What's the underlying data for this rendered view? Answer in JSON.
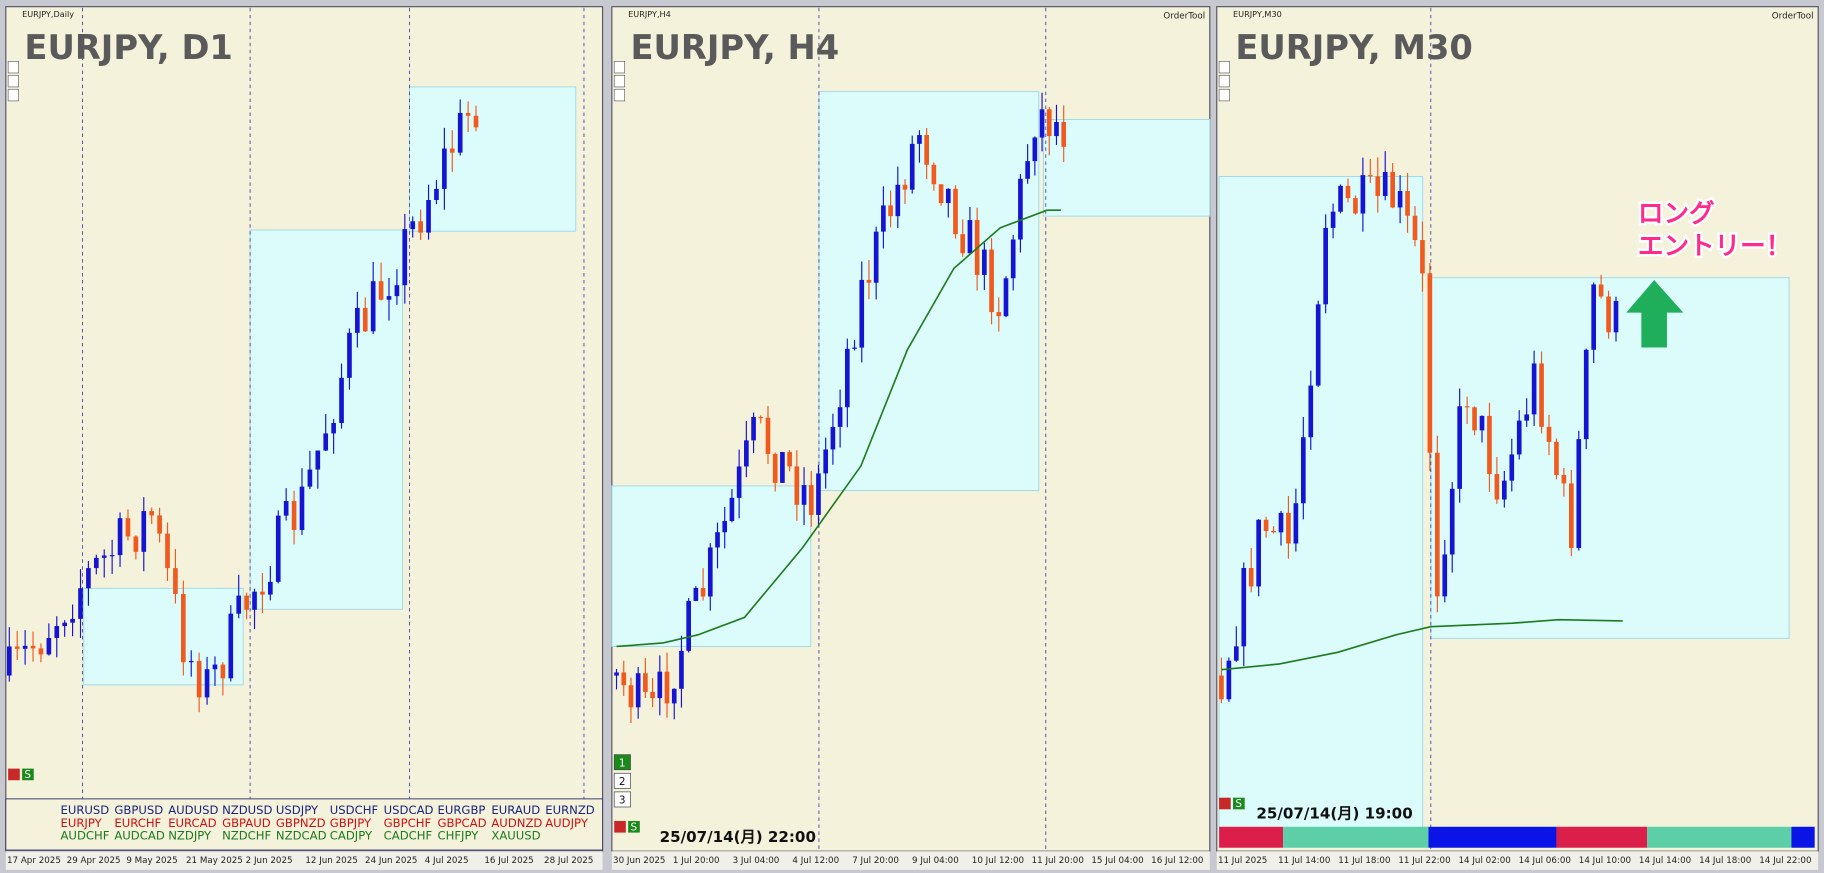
{
  "panels": [
    {
      "label": "EURJPY,Daily",
      "title": "EURJPY, D1",
      "dates": [
        "17 Apr 2025",
        "29 Apr 2025",
        "9 May 2025",
        "21 May 2025",
        "2 Jun 2025",
        "12 Jun 2025",
        "24 Jun 2025",
        "4 Jul 2025",
        "16 Jul 2025",
        "28 Jul 2025"
      ]
    },
    {
      "label": "EURJPY,H4",
      "title": "EURJPY, H4",
      "order_tool": "OrderTool",
      "dates": [
        "30 Jun 2025",
        "1 Jul 20:00",
        "3 Jul 04:00",
        "4 Jul 12:00",
        "7 Jul 20:00",
        "9 Jul 04:00",
        "10 Jul 12:00",
        "11 Jul 20:00",
        "15 Jul 04:00",
        "16 Jul 12:00"
      ],
      "timestamp": "25/07/14(月) 22:00",
      "buttons": [
        "1",
        "2",
        "3"
      ]
    },
    {
      "label": "EURJPY,M30",
      "title": "EURJPY, M30",
      "order_tool": "OrderTool",
      "dates": [
        "11 Jul 2025",
        "11 Jul 14:00",
        "11 Jul 18:00",
        "11 Jul 22:00",
        "14 Jul 02:00",
        "14 Jul 06:00",
        "14 Jul 10:00",
        "14 Jul 14:00",
        "14 Jul 18:00",
        "14 Jul 22:00"
      ],
      "timestamp": "25/07/14(月) 19:00",
      "annotation": [
        "ロング",
        "エントリー！"
      ]
    }
  ],
  "pairs": [
    [
      "EURUSD",
      "GBPUSD",
      "AUDUSD",
      "NZDUSD",
      "USDJPY",
      "USDCHF",
      "USDCAD",
      "EURGBP",
      "EURAUD",
      "EURNZD"
    ],
    [
      "EURJPY",
      "EURCHF",
      "EURCAD",
      "GBPAUD",
      "GBPNZD",
      "GBPJPY",
      "GBPCHF",
      "GBPCAD",
      "AUDNZD",
      "AUDJPY"
    ],
    [
      "AUDCHF",
      "AUDCAD",
      "NZDJPY",
      "NZDCHF",
      "NZDCAD",
      "CADJPY",
      "CADCHF",
      "CHFJPY",
      "XAUUSD"
    ]
  ],
  "status_button": "S"
}
